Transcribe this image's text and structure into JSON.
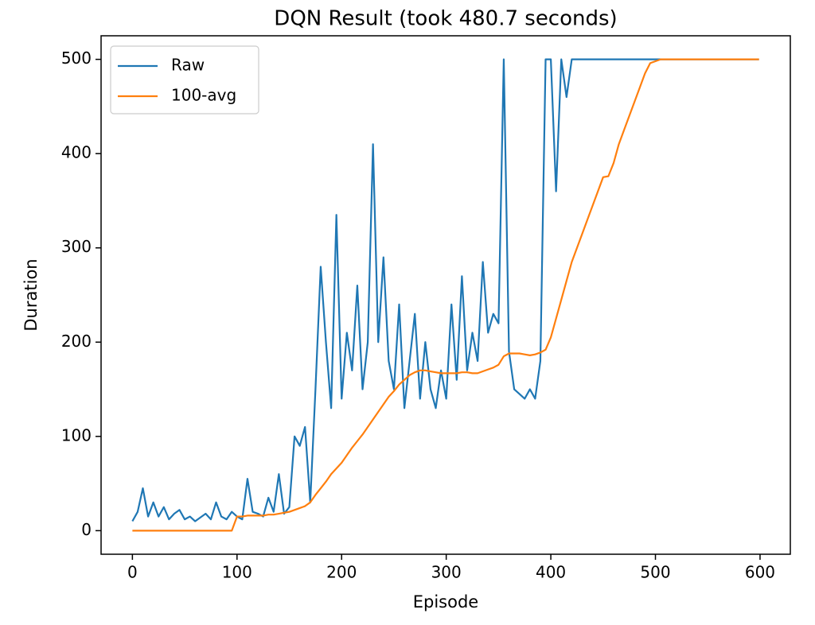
{
  "chart_data": {
    "type": "line",
    "title": "DQN Result (took 480.7 seconds)",
    "x_label": "Episode",
    "y_label": "Duration",
    "x": [
      0,
      5,
      10,
      15,
      20,
      25,
      30,
      35,
      40,
      45,
      50,
      55,
      60,
      65,
      70,
      75,
      80,
      85,
      90,
      95,
      100,
      105,
      110,
      115,
      120,
      125,
      130,
      135,
      140,
      145,
      150,
      155,
      160,
      165,
      170,
      175,
      180,
      185,
      190,
      195,
      200,
      205,
      210,
      215,
      220,
      225,
      230,
      235,
      240,
      245,
      250,
      255,
      260,
      265,
      270,
      275,
      280,
      285,
      290,
      295,
      300,
      305,
      310,
      315,
      320,
      325,
      330,
      335,
      340,
      345,
      350,
      355,
      360,
      365,
      370,
      375,
      380,
      385,
      390,
      395,
      400,
      405,
      410,
      415,
      420,
      425,
      430,
      435,
      440,
      445,
      450,
      455,
      460,
      465,
      470,
      475,
      480,
      485,
      490,
      495,
      500,
      505,
      510,
      515,
      520,
      525,
      530,
      535,
      540,
      545,
      550,
      555,
      560,
      565,
      570,
      575,
      580,
      585,
      590,
      595,
      599
    ],
    "series": [
      {
        "name": "Raw",
        "color": "#1f77b4",
        "values": [
          10,
          20,
          45,
          15,
          30,
          15,
          25,
          12,
          18,
          22,
          12,
          15,
          10,
          14,
          18,
          12,
          30,
          15,
          12,
          20,
          15,
          12,
          55,
          20,
          18,
          15,
          35,
          20,
          60,
          18,
          25,
          100,
          90,
          110,
          30,
          150,
          280,
          200,
          130,
          335,
          140,
          210,
          170,
          260,
          150,
          200,
          410,
          200,
          290,
          180,
          150,
          240,
          130,
          180,
          230,
          140,
          200,
          150,
          130,
          170,
          140,
          240,
          160,
          270,
          170,
          210,
          180,
          285,
          210,
          230,
          220,
          500,
          190,
          150,
          145,
          140,
          150,
          140,
          180,
          500,
          500,
          360,
          500,
          460,
          500,
          500,
          500,
          500,
          500,
          500,
          500,
          500,
          500,
          500,
          500,
          500,
          500,
          500,
          500,
          500,
          500,
          500,
          500,
          500,
          500,
          500,
          500,
          500,
          500,
          500,
          500,
          500,
          500,
          500,
          500,
          500,
          500,
          500,
          500,
          500,
          500
        ]
      },
      {
        "name": "100-avg",
        "color": "#ff7f0e",
        "values": [
          0,
          0,
          0,
          0,
          0,
          0,
          0,
          0,
          0,
          0,
          0,
          0,
          0,
          0,
          0,
          0,
          0,
          0,
          0,
          0,
          15,
          15,
          16,
          16,
          16,
          16,
          17,
          17,
          18,
          19,
          20,
          22,
          24,
          26,
          30,
          38,
          45,
          52,
          60,
          66,
          72,
          80,
          88,
          95,
          102,
          110,
          118,
          126,
          134,
          142,
          148,
          155,
          160,
          165,
          168,
          170,
          170,
          169,
          168,
          167,
          167,
          167,
          167,
          168,
          168,
          167,
          167,
          169,
          171,
          173,
          176,
          185,
          188,
          188,
          188,
          187,
          186,
          187,
          189,
          192,
          205,
          225,
          245,
          265,
          285,
          300,
          315,
          330,
          345,
          360,
          375,
          376,
          390,
          410,
          425,
          440,
          455,
          470,
          485,
          496,
          498,
          500,
          500,
          500,
          500,
          500,
          500,
          500,
          500,
          500,
          500,
          500,
          500,
          500,
          500,
          500,
          500,
          500,
          500,
          500,
          500
        ]
      }
    ],
    "xlim": [
      -29.95,
      628.95
    ],
    "ylim": [
      -25,
      525
    ],
    "xticks": [
      0,
      100,
      200,
      300,
      400,
      500,
      600
    ],
    "yticks": [
      0,
      100,
      200,
      300,
      400,
      500
    ],
    "grid": false,
    "legend": "upper-left"
  }
}
